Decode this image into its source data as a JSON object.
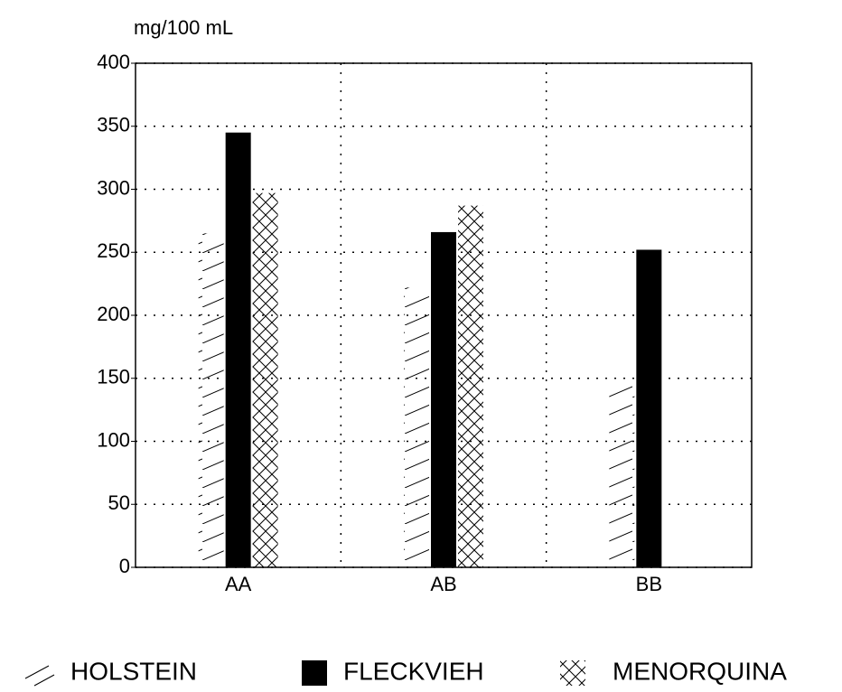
{
  "chart_data": {
    "type": "bar",
    "y_label": "mg/100 mL",
    "categories": [
      "AA",
      "AB",
      "BB"
    ],
    "series": [
      {
        "name": "HOLSTEIN",
        "color": "#000000",
        "pattern": "hatch",
        "values": [
          265,
          222,
          149
        ]
      },
      {
        "name": "FLECKVIEH",
        "color": "#000000",
        "pattern": "solid",
        "values": [
          345,
          266,
          252
        ]
      },
      {
        "name": "MENORQUINA",
        "color": "#000000",
        "pattern": "crosshatch",
        "values": [
          297,
          287,
          null
        ]
      }
    ],
    "ylim": [
      0,
      400
    ],
    "yticks": [
      0,
      50,
      100,
      150,
      200,
      250,
      300,
      350,
      400
    ],
    "grid": true,
    "legend": "bottom"
  }
}
